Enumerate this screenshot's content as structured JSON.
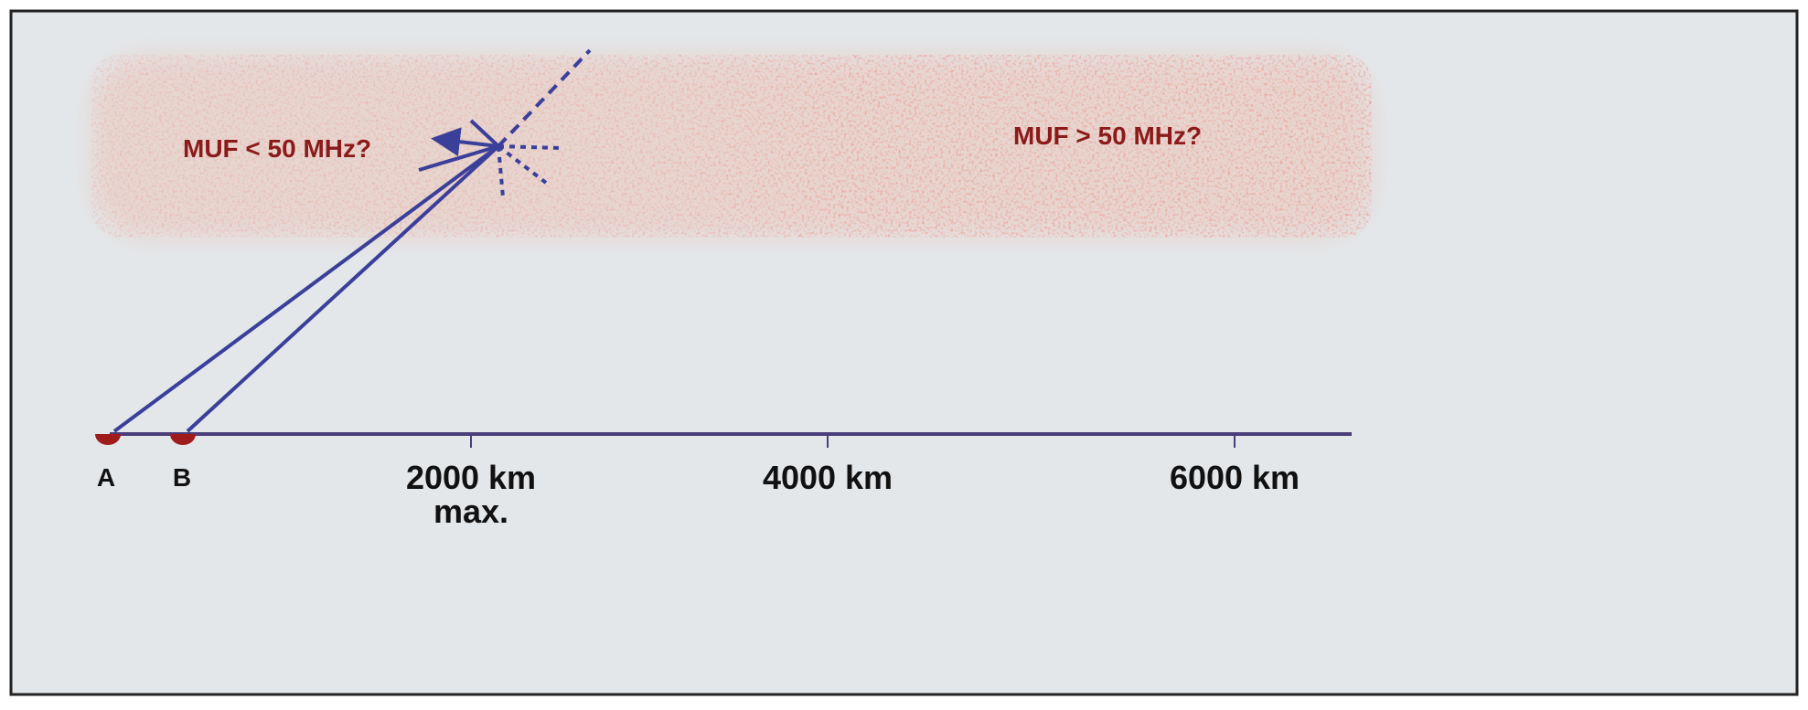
{
  "regions": [
    {
      "label": "MUF < 50 MHz?"
    },
    {
      "label": "MUF > 50 MHz?"
    }
  ],
  "stations": [
    "A",
    "B"
  ],
  "distances": [
    {
      "label": "2000 km",
      "note": "max."
    },
    {
      "label": "4000 km"
    },
    {
      "label": "6000 km"
    }
  ]
}
